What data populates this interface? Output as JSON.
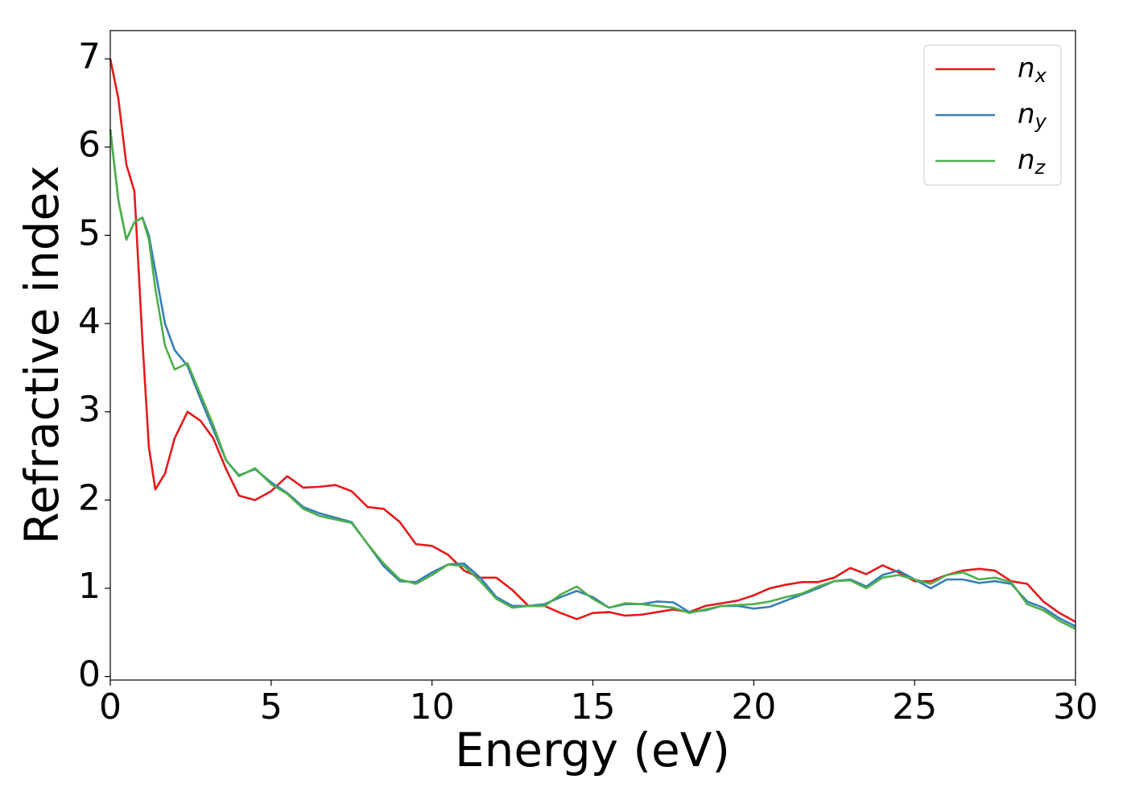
{
  "chart_data": {
    "type": "line",
    "xlabel": "Energy (eV)",
    "ylabel": "Refractive index",
    "x": [
      0,
      0.25,
      0.5,
      0.75,
      1,
      1.2,
      1.4,
      1.7,
      2,
      2.4,
      2.8,
      3.2,
      3.6,
      4,
      4.5,
      5,
      5.5,
      6,
      6.5,
      7,
      7.5,
      8,
      8.5,
      9,
      9.5,
      10,
      10.5,
      11,
      11.5,
      12,
      12.5,
      13,
      13.5,
      14,
      14.5,
      15,
      15.5,
      16,
      16.5,
      17,
      17.5,
      18,
      18.5,
      19,
      19.5,
      20,
      20.5,
      21,
      21.5,
      22,
      22.5,
      23,
      23.5,
      24,
      24.5,
      25,
      25.5,
      26,
      26.5,
      27,
      27.5,
      28,
      28.5,
      29,
      29.5,
      30
    ],
    "series": [
      {
        "name": "nx",
        "color": "#e41a1c",
        "values": [
          7.0,
          6.55,
          5.8,
          5.5,
          3.8,
          2.6,
          2.12,
          2.3,
          2.7,
          3.0,
          2.9,
          2.7,
          2.35,
          2.05,
          2.0,
          2.1,
          2.27,
          2.14,
          2.15,
          2.17,
          2.1,
          1.92,
          1.9,
          1.75,
          1.5,
          1.48,
          1.38,
          1.2,
          1.12,
          1.12,
          0.98,
          0.8,
          0.8,
          0.72,
          0.65,
          0.72,
          0.73,
          0.69,
          0.7,
          0.73,
          0.76,
          0.73,
          0.8,
          0.83,
          0.86,
          0.92,
          1.0,
          1.04,
          1.07,
          1.07,
          1.12,
          1.23,
          1.16,
          1.26,
          1.18,
          1.08,
          1.08,
          1.15,
          1.2,
          1.22,
          1.2,
          1.08,
          1.05,
          0.85,
          0.72,
          0.62
        ]
      },
      {
        "name": "ny",
        "color": "#377eb8",
        "values": [
          6.2,
          5.4,
          4.95,
          5.15,
          5.2,
          5.0,
          4.6,
          4.0,
          3.7,
          3.52,
          3.15,
          2.8,
          2.45,
          2.28,
          2.35,
          2.2,
          2.08,
          1.92,
          1.85,
          1.8,
          1.75,
          1.5,
          1.25,
          1.08,
          1.07,
          1.18,
          1.27,
          1.28,
          1.12,
          0.9,
          0.8,
          0.8,
          0.82,
          0.9,
          0.97,
          0.9,
          0.78,
          0.82,
          0.82,
          0.85,
          0.84,
          0.73,
          0.75,
          0.8,
          0.8,
          0.77,
          0.79,
          0.86,
          0.93,
          1.0,
          1.08,
          1.1,
          1.02,
          1.15,
          1.2,
          1.1,
          1.0,
          1.1,
          1.1,
          1.06,
          1.08,
          1.05,
          0.85,
          0.78,
          0.66,
          0.57
        ]
      },
      {
        "name": "nz",
        "color": "#4daf4a",
        "values": [
          6.2,
          5.4,
          4.95,
          5.15,
          5.2,
          4.95,
          4.4,
          3.75,
          3.48,
          3.55,
          3.2,
          2.85,
          2.45,
          2.27,
          2.36,
          2.18,
          2.07,
          1.9,
          1.82,
          1.78,
          1.74,
          1.5,
          1.28,
          1.1,
          1.05,
          1.15,
          1.27,
          1.25,
          1.08,
          0.88,
          0.78,
          0.8,
          0.8,
          0.93,
          1.02,
          0.88,
          0.78,
          0.83,
          0.82,
          0.8,
          0.78,
          0.72,
          0.76,
          0.8,
          0.81,
          0.82,
          0.85,
          0.9,
          0.94,
          1.02,
          1.08,
          1.09,
          1.0,
          1.12,
          1.15,
          1.1,
          1.05,
          1.15,
          1.18,
          1.1,
          1.12,
          1.07,
          0.82,
          0.75,
          0.63,
          0.54
        ]
      }
    ],
    "xlim": [
      0,
      30
    ],
    "ylim": [
      -0.04,
      7.32
    ],
    "xticks": [
      0,
      5,
      10,
      15,
      20,
      25,
      30
    ],
    "yticks": [
      0,
      1,
      2,
      3,
      4,
      5,
      6,
      7
    ],
    "grid": false,
    "legend": "upper right"
  }
}
